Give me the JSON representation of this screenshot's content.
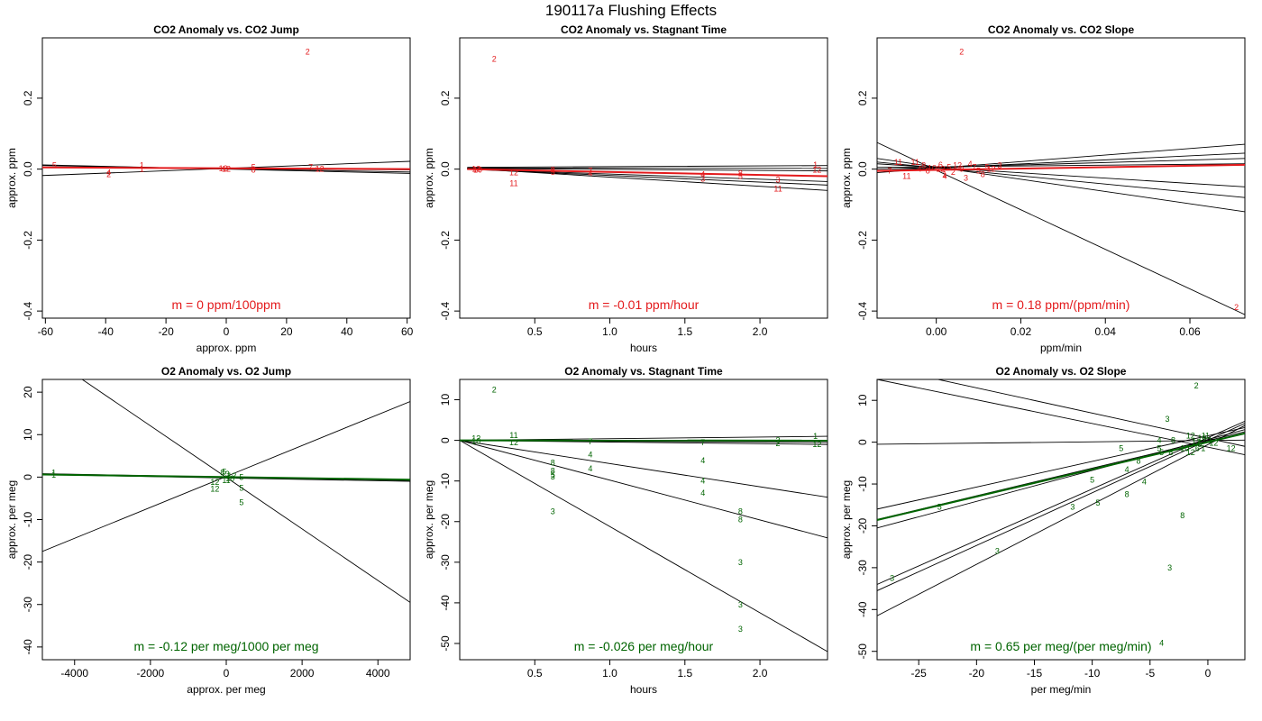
{
  "page_title": "190117a   Flushing Effects",
  "colors": {
    "co2": "#e31a1c",
    "o2": "#006400",
    "fit": "#000000"
  },
  "chart_data": [
    {
      "type": "scatter",
      "title": "CO2 Anomaly vs. CO2 Jump",
      "xlabel": "approx. ppm",
      "ylabel": "approx. ppm",
      "xlim": [
        -61,
        61
      ],
      "ylim": [
        -0.42,
        0.37
      ],
      "xticks": [
        -60,
        -40,
        -20,
        0,
        20,
        40,
        60
      ],
      "yticks": [
        -0.4,
        -0.2,
        0.0,
        0.2
      ],
      "ytick_labels": [
        "-0.4",
        "-0.2",
        "0.0",
        "0.2"
      ],
      "color": "co2",
      "slope_label": "m = 0 ppm/100ppm",
      "points": [
        {
          "x": 27,
          "y": 0.33,
          "label": "2"
        },
        {
          "x": -57,
          "y": 0.01,
          "label": "5"
        },
        {
          "x": -28,
          "y": 0.01,
          "label": "1"
        },
        {
          "x": -28,
          "y": 0.0,
          "label": "1"
        },
        {
          "x": -39,
          "y": -0.01,
          "label": "4"
        },
        {
          "x": -39,
          "y": -0.015,
          "label": "2"
        },
        {
          "x": -1,
          "y": 0.002,
          "label": "12"
        },
        {
          "x": 0,
          "y": 0.0,
          "label": "12"
        },
        {
          "x": 9,
          "y": 0.005,
          "label": "5"
        },
        {
          "x": 9,
          "y": -0.002,
          "label": "8"
        },
        {
          "x": 28,
          "y": 0.005,
          "label": "7"
        },
        {
          "x": 31,
          "y": 0.0,
          "label": "12"
        }
      ],
      "lines": [
        {
          "x1": -61,
          "y1": 0.012,
          "x2": 61,
          "y2": -0.012
        },
        {
          "x1": -61,
          "y1": 0.01,
          "x2": 61,
          "y2": -0.008
        },
        {
          "x1": -61,
          "y1": -0.018,
          "x2": 61,
          "y2": 0.022
        },
        {
          "x1": -61,
          "y1": 0.005,
          "x2": 61,
          "y2": -0.002
        }
      ],
      "fit": {
        "x1": -61,
        "y1": 0.005,
        "x2": 61,
        "y2": 0.0
      }
    },
    {
      "type": "scatter",
      "title": "CO2 Anomaly vs. Stagnant Time",
      "xlabel": "hours",
      "ylabel": "approx. ppm",
      "xlim": [
        0.0,
        2.45
      ],
      "ylim": [
        -0.42,
        0.37
      ],
      "xticks": [
        0.5,
        1.0,
        1.5,
        2.0
      ],
      "xtick_labels": [
        "0.5",
        "1.0",
        "1.5",
        "2.0"
      ],
      "yticks": [
        -0.4,
        -0.2,
        0.0,
        0.2
      ],
      "ytick_labels": [
        "-0.4",
        "-0.2",
        "0.0",
        "0.2"
      ],
      "color": "co2",
      "slope_label": "m = -0.01 ppm/hour",
      "points": [
        {
          "x": 0.23,
          "y": 0.31,
          "label": "2"
        },
        {
          "x": 0.11,
          "y": 0.0,
          "label": "12"
        },
        {
          "x": 0.12,
          "y": -0.002,
          "label": "10"
        },
        {
          "x": 0.36,
          "y": -0.01,
          "label": "12"
        },
        {
          "x": 0.36,
          "y": -0.04,
          "label": "11"
        },
        {
          "x": 0.62,
          "y": -0.002,
          "label": "8"
        },
        {
          "x": 0.62,
          "y": -0.008,
          "label": "5"
        },
        {
          "x": 0.87,
          "y": -0.005,
          "label": "7"
        },
        {
          "x": 0.87,
          "y": -0.012,
          "label": "4"
        },
        {
          "x": 1.62,
          "y": -0.015,
          "label": "4"
        },
        {
          "x": 1.62,
          "y": -0.027,
          "label": "3"
        },
        {
          "x": 1.87,
          "y": -0.012,
          "label": "8"
        },
        {
          "x": 1.87,
          "y": -0.02,
          "label": "5"
        },
        {
          "x": 2.12,
          "y": -0.03,
          "label": "3"
        },
        {
          "x": 2.12,
          "y": -0.055,
          "label": "11"
        },
        {
          "x": 2.37,
          "y": 0.012,
          "label": "1"
        },
        {
          "x": 2.38,
          "y": -0.002,
          "label": "12"
        }
      ],
      "lines": [
        {
          "x1": 0.05,
          "y1": 0.005,
          "x2": 2.45,
          "y2": 0.01
        },
        {
          "x1": 0.05,
          "y1": 0.002,
          "x2": 2.45,
          "y2": -0.005
        },
        {
          "x1": 0.05,
          "y1": 0.0,
          "x2": 2.45,
          "y2": -0.02
        },
        {
          "x1": 0.05,
          "y1": 0.0,
          "x2": 2.45,
          "y2": -0.035
        },
        {
          "x1": 0.05,
          "y1": 0.0,
          "x2": 2.45,
          "y2": -0.045
        },
        {
          "x1": 0.05,
          "y1": 0.002,
          "x2": 2.45,
          "y2": -0.06
        },
        {
          "x1": 0.05,
          "y1": 0.003,
          "x2": 2.45,
          "y2": 0.002
        }
      ],
      "fit": {
        "x1": 0.05,
        "y1": 0.0,
        "x2": 2.45,
        "y2": -0.02
      }
    },
    {
      "type": "scatter",
      "title": "CO2 Anomaly vs. CO2 Slope",
      "xlabel": "ppm/min",
      "ylabel": "approx. ppm",
      "xlim": [
        -0.014,
        0.073
      ],
      "ylim": [
        -0.42,
        0.37
      ],
      "xticks": [
        0.0,
        0.02,
        0.04,
        0.06
      ],
      "xtick_labels": [
        "0.00",
        "0.02",
        "0.04",
        "0.06"
      ],
      "yticks": [
        -0.4,
        -0.2,
        0.0,
        0.2
      ],
      "ytick_labels": [
        "-0.4",
        "-0.2",
        "0.0",
        "0.2"
      ],
      "color": "co2",
      "slope_label": "m = 0.18 ppm/(ppm/min)",
      "points": [
        {
          "x": 0.006,
          "y": 0.33,
          "label": "2"
        },
        {
          "x": 0.071,
          "y": -0.39,
          "label": "2"
        },
        {
          "x": -0.009,
          "y": 0.02,
          "label": "11"
        },
        {
          "x": -0.005,
          "y": 0.02,
          "label": "11"
        },
        {
          "x": -0.011,
          "y": -0.005,
          "label": "7"
        },
        {
          "x": -0.007,
          "y": -0.02,
          "label": "11"
        },
        {
          "x": -0.004,
          "y": 0.0,
          "label": "4"
        },
        {
          "x": -0.003,
          "y": 0.01,
          "label": "8"
        },
        {
          "x": -0.002,
          "y": -0.005,
          "label": "8"
        },
        {
          "x": -0.001,
          "y": 0.003,
          "label": "10"
        },
        {
          "x": 0.001,
          "y": 0.0,
          "label": "12"
        },
        {
          "x": 0.001,
          "y": 0.012,
          "label": "6"
        },
        {
          "x": 0.002,
          "y": -0.015,
          "label": "1"
        },
        {
          "x": 0.002,
          "y": -0.02,
          "label": "4"
        },
        {
          "x": 0.003,
          "y": 0.005,
          "label": "5"
        },
        {
          "x": 0.004,
          "y": -0.008,
          "label": "2"
        },
        {
          "x": 0.005,
          "y": 0.01,
          "label": "12"
        },
        {
          "x": 0.006,
          "y": 0.0,
          "label": "9"
        },
        {
          "x": 0.007,
          "y": -0.025,
          "label": "3"
        },
        {
          "x": 0.008,
          "y": 0.015,
          "label": "4"
        },
        {
          "x": 0.009,
          "y": 0.005,
          "label": "7"
        },
        {
          "x": 0.01,
          "y": -0.005,
          "label": "5"
        },
        {
          "x": 0.011,
          "y": -0.015,
          "label": "8"
        },
        {
          "x": 0.012,
          "y": 0.005,
          "label": "5"
        },
        {
          "x": 0.013,
          "y": 0.0,
          "label": "12"
        },
        {
          "x": 0.015,
          "y": 0.01,
          "label": "3"
        }
      ],
      "lines": [
        {
          "x1": -0.014,
          "y1": 0.075,
          "x2": 0.073,
          "y2": -0.41
        },
        {
          "x1": -0.014,
          "y1": 0.03,
          "x2": 0.073,
          "y2": -0.12
        },
        {
          "x1": -0.014,
          "y1": 0.02,
          "x2": 0.073,
          "y2": -0.08
        },
        {
          "x1": -0.014,
          "y1": 0.015,
          "x2": 0.073,
          "y2": -0.05
        },
        {
          "x1": -0.014,
          "y1": -0.01,
          "x2": 0.073,
          "y2": 0.07
        },
        {
          "x1": -0.014,
          "y1": -0.005,
          "x2": 0.073,
          "y2": 0.045
        },
        {
          "x1": -0.014,
          "y1": 0.0,
          "x2": 0.073,
          "y2": 0.03
        },
        {
          "x1": -0.014,
          "y1": 0.005,
          "x2": 0.073,
          "y2": 0.015
        }
      ],
      "fit": {
        "x1": -0.014,
        "y1": -0.005,
        "x2": 0.073,
        "y2": 0.012
      }
    },
    {
      "type": "scatter",
      "title": "O2 Anomaly vs. O2 Jump",
      "xlabel": "approx. per meg",
      "ylabel": "approx. per meg",
      "xlim": [
        -4850,
        4850
      ],
      "ylim": [
        -43,
        23
      ],
      "xticks": [
        -4000,
        -2000,
        0,
        2000,
        4000
      ],
      "yticks": [
        -40,
        -30,
        -20,
        -10,
        0,
        10,
        20
      ],
      "color": "o2",
      "slope_label": "m = -0.12 per meg/1000 per meg",
      "points": [
        {
          "x": -4550,
          "y": 1.0,
          "label": "1"
        },
        {
          "x": -4550,
          "y": 0.5,
          "label": "1"
        },
        {
          "x": -100,
          "y": 1.0,
          "label": "8"
        },
        {
          "x": -50,
          "y": 1.3,
          "label": "5"
        },
        {
          "x": 30,
          "y": 0.7,
          "label": "3"
        },
        {
          "x": 150,
          "y": 0.3,
          "label": "12"
        },
        {
          "x": 100,
          "y": -0.3,
          "label": "10"
        },
        {
          "x": 0,
          "y": -0.8,
          "label": "11"
        },
        {
          "x": -300,
          "y": -1.2,
          "label": "12"
        },
        {
          "x": -300,
          "y": -2.8,
          "label": "12"
        },
        {
          "x": 400,
          "y": 0.0,
          "label": "5"
        },
        {
          "x": 400,
          "y": -2.6,
          "label": "5"
        },
        {
          "x": 400,
          "y": -6.0,
          "label": "5"
        }
      ],
      "lines": [
        {
          "x1": -4850,
          "y1": -17.5,
          "x2": 4850,
          "y2": 17.8
        },
        {
          "x1": -3800,
          "y1": 23,
          "x2": 4850,
          "y2": -29.5
        },
        {
          "x1": -4850,
          "y1": 0.8,
          "x2": 4850,
          "y2": -0.8
        },
        {
          "x1": -4850,
          "y1": 0.6,
          "x2": 4850,
          "y2": -1.0
        }
      ],
      "fit": {
        "x1": -4850,
        "y1": 0.6,
        "x2": 4850,
        "y2": -0.6
      }
    },
    {
      "type": "scatter",
      "title": "O2 Anomaly vs. Stagnant Time",
      "xlabel": "hours",
      "ylabel": "approx. per meg",
      "xlim": [
        0.0,
        2.45
      ],
      "ylim": [
        -54,
        15
      ],
      "xticks": [
        0.5,
        1.0,
        1.5,
        2.0
      ],
      "xtick_labels": [
        "0.5",
        "1.0",
        "1.5",
        "2.0"
      ],
      "yticks": [
        -50,
        -40,
        -30,
        -20,
        -10,
        0,
        10
      ],
      "color": "o2",
      "slope_label": "m = -0.026 per meg/hour",
      "points": [
        {
          "x": 0.23,
          "y": 12.5,
          "label": "2"
        },
        {
          "x": 0.11,
          "y": 0.5,
          "label": "12"
        },
        {
          "x": 0.11,
          "y": -0.2,
          "label": "10"
        },
        {
          "x": 0.36,
          "y": 1.2,
          "label": "11"
        },
        {
          "x": 0.36,
          "y": -0.5,
          "label": "12"
        },
        {
          "x": 0.62,
          "y": -5.5,
          "label": "8"
        },
        {
          "x": 0.62,
          "y": -7.5,
          "label": "8"
        },
        {
          "x": 0.62,
          "y": -8.5,
          "label": "5"
        },
        {
          "x": 0.62,
          "y": -9.0,
          "label": "3"
        },
        {
          "x": 0.62,
          "y": -17.5,
          "label": "3"
        },
        {
          "x": 0.87,
          "y": -0.3,
          "label": "7"
        },
        {
          "x": 0.87,
          "y": -3.5,
          "label": "4"
        },
        {
          "x": 0.87,
          "y": -7.0,
          "label": "4"
        },
        {
          "x": 1.62,
          "y": -0.5,
          "label": "7"
        },
        {
          "x": 1.62,
          "y": -5.0,
          "label": "4"
        },
        {
          "x": 1.62,
          "y": -10.0,
          "label": "4"
        },
        {
          "x": 1.62,
          "y": -13.0,
          "label": "4"
        },
        {
          "x": 1.87,
          "y": -17.5,
          "label": "8"
        },
        {
          "x": 1.87,
          "y": -19.5,
          "label": "8"
        },
        {
          "x": 1.87,
          "y": -30.0,
          "label": "3"
        },
        {
          "x": 1.87,
          "y": -40.5,
          "label": "3"
        },
        {
          "x": 1.87,
          "y": -46.5,
          "label": "3"
        },
        {
          "x": 2.12,
          "y": 0.0,
          "label": "3"
        },
        {
          "x": 2.12,
          "y": -0.8,
          "label": "2"
        },
        {
          "x": 2.37,
          "y": 1.0,
          "label": "1"
        },
        {
          "x": 2.38,
          "y": -1.0,
          "label": "12"
        }
      ],
      "lines": [
        {
          "x1": 0.0,
          "y1": 0.0,
          "x2": 2.45,
          "y2": -52.0
        },
        {
          "x1": 0.0,
          "y1": 0.0,
          "x2": 2.45,
          "y2": -24.0
        },
        {
          "x1": 0.0,
          "y1": 0.0,
          "x2": 2.45,
          "y2": -14.0
        },
        {
          "x1": 0.0,
          "y1": 0.0,
          "x2": 2.45,
          "y2": 1.0
        },
        {
          "x1": 0.0,
          "y1": 0.0,
          "x2": 2.45,
          "y2": -0.5
        },
        {
          "x1": 0.0,
          "y1": 0.0,
          "x2": 2.45,
          "y2": -1.0
        }
      ],
      "fit": {
        "x1": 0.0,
        "y1": 0.0,
        "x2": 2.45,
        "y2": -0.06
      }
    },
    {
      "type": "scatter",
      "title": "O2 Anomaly vs. O2 Slope",
      "xlabel": "per meg/min",
      "ylabel": "approx. per meg",
      "xlim": [
        -28.6,
        3.2
      ],
      "ylim": [
        -52,
        15
      ],
      "xticks": [
        -25,
        -20,
        -15,
        -10,
        -5,
        0
      ],
      "yticks": [
        -50,
        -40,
        -30,
        -20,
        -10,
        0,
        10
      ],
      "color": "o2",
      "slope_label": "m = 0.65 per meg/(per meg/min)",
      "points": [
        {
          "x": -1.0,
          "y": 13.5,
          "label": "2"
        },
        {
          "x": -3.5,
          "y": 5.5,
          "label": "3"
        },
        {
          "x": -1.5,
          "y": 1.5,
          "label": "12"
        },
        {
          "x": -0.2,
          "y": 1.5,
          "label": "11"
        },
        {
          "x": -0.5,
          "y": 1.0,
          "label": "10"
        },
        {
          "x": -1.0,
          "y": 0.0,
          "label": "12"
        },
        {
          "x": -0.7,
          "y": -0.5,
          "label": "5"
        },
        {
          "x": -0.9,
          "y": -1.5,
          "label": "6"
        },
        {
          "x": -0.4,
          "y": -1.5,
          "label": "1"
        },
        {
          "x": 0.2,
          "y": 0.5,
          "label": "1"
        },
        {
          "x": 0.5,
          "y": -0.2,
          "label": "12"
        },
        {
          "x": 2.0,
          "y": -1.5,
          "label": "12"
        },
        {
          "x": -4.2,
          "y": 0.5,
          "label": "4"
        },
        {
          "x": -3.0,
          "y": 0.5,
          "label": "8"
        },
        {
          "x": -7.5,
          "y": -1.5,
          "label": "5"
        },
        {
          "x": -4.2,
          "y": -1.5,
          "label": "5"
        },
        {
          "x": -2.0,
          "y": -1.5,
          "label": "10"
        },
        {
          "x": -1.5,
          "y": -2.5,
          "label": "12"
        },
        {
          "x": -4.0,
          "y": -2.5,
          "label": "5"
        },
        {
          "x": -3.2,
          "y": -2.5,
          "label": "8"
        },
        {
          "x": -6.0,
          "y": -4.5,
          "label": "8"
        },
        {
          "x": -7.0,
          "y": -6.5,
          "label": "4"
        },
        {
          "x": -10.0,
          "y": -9.0,
          "label": "5"
        },
        {
          "x": -5.5,
          "y": -9.5,
          "label": "4"
        },
        {
          "x": -7.0,
          "y": -12.5,
          "label": "8"
        },
        {
          "x": -9.5,
          "y": -14.5,
          "label": "5"
        },
        {
          "x": -11.7,
          "y": -15.5,
          "label": "3"
        },
        {
          "x": -23.2,
          "y": -15.5,
          "label": "5"
        },
        {
          "x": -2.2,
          "y": -17.5,
          "label": "8"
        },
        {
          "x": -18.2,
          "y": -26.0,
          "label": "3"
        },
        {
          "x": -3.3,
          "y": -30.0,
          "label": "3"
        },
        {
          "x": -27.3,
          "y": -32.5,
          "label": "3"
        },
        {
          "x": -4.0,
          "y": -48.0,
          "label": "4"
        }
      ],
      "lines": [
        {
          "x1": -28.6,
          "y1": 15.0,
          "x2": 3.2,
          "y2": -3.0
        },
        {
          "x1": -25.0,
          "y1": 16.0,
          "x2": 3.2,
          "y2": -1.0
        },
        {
          "x1": -28.6,
          "y1": -0.5,
          "x2": 3.2,
          "y2": 0.5
        },
        {
          "x1": -28.6,
          "y1": -18.5,
          "x2": 3.2,
          "y2": 2.5
        },
        {
          "x1": -28.6,
          "y1": -20.5,
          "x2": 3.2,
          "y2": 3.0
        },
        {
          "x1": -28.6,
          "y1": -16.0,
          "x2": 3.2,
          "y2": 3.5
        },
        {
          "x1": -28.6,
          "y1": -34.0,
          "x2": 3.2,
          "y2": 5.0
        },
        {
          "x1": -28.6,
          "y1": -35.5,
          "x2": 3.2,
          "y2": 4.5
        },
        {
          "x1": -28.6,
          "y1": -41.5,
          "x2": 3.2,
          "y2": 4.0
        }
      ],
      "fit": {
        "x1": -28.6,
        "y1": -18.6,
        "x2": 3.2,
        "y2": 2.1
      }
    }
  ]
}
